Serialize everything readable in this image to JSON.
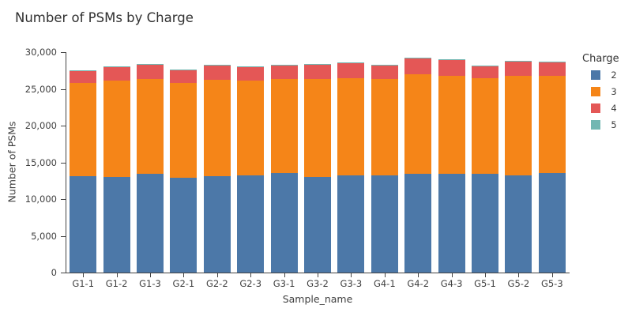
{
  "chart_data": {
    "type": "bar",
    "stacked": true,
    "title": "Number of PSMs by Charge",
    "xlabel": "Sample_name",
    "ylabel": "Number of PSMs",
    "ylim": [
      0,
      30000
    ],
    "grid": false,
    "legend_position": "right",
    "legend_title": "Charge",
    "y_ticks": [
      0,
      5000,
      10000,
      15000,
      20000,
      25000,
      30000
    ],
    "y_tick_labels": [
      "0",
      "5,000",
      "10,000",
      "15,000",
      "20,000",
      "25,000",
      "30,000"
    ],
    "categories": [
      "G1-1",
      "G1-2",
      "G1-3",
      "G2-1",
      "G2-2",
      "G2-3",
      "G3-1",
      "G3-2",
      "G3-3",
      "G4-1",
      "G4-2",
      "G4-3",
      "G5-1",
      "G5-2",
      "G5-3"
    ],
    "series": [
      {
        "name": "2",
        "color": "#4c78a8",
        "values": [
          13150,
          13050,
          13400,
          12950,
          13150,
          13250,
          13500,
          13050,
          13250,
          13250,
          13400,
          13400,
          13400,
          13250,
          13550
        ]
      },
      {
        "name": "3",
        "color": "#f58518",
        "values": [
          12650,
          13050,
          12950,
          12850,
          13050,
          12850,
          12850,
          13300,
          13200,
          13100,
          13600,
          13350,
          13050,
          13500,
          13200
        ]
      },
      {
        "name": "4",
        "color": "#e45756",
        "values": [
          1650,
          1850,
          1950,
          1700,
          1950,
          1900,
          1850,
          1950,
          2050,
          1850,
          2100,
          2150,
          1650,
          1950,
          1850
        ]
      },
      {
        "name": "5",
        "color": "#72b7b2",
        "values": [
          100,
          100,
          100,
          100,
          100,
          100,
          100,
          100,
          100,
          100,
          100,
          100,
          100,
          100,
          100
        ]
      }
    ]
  }
}
